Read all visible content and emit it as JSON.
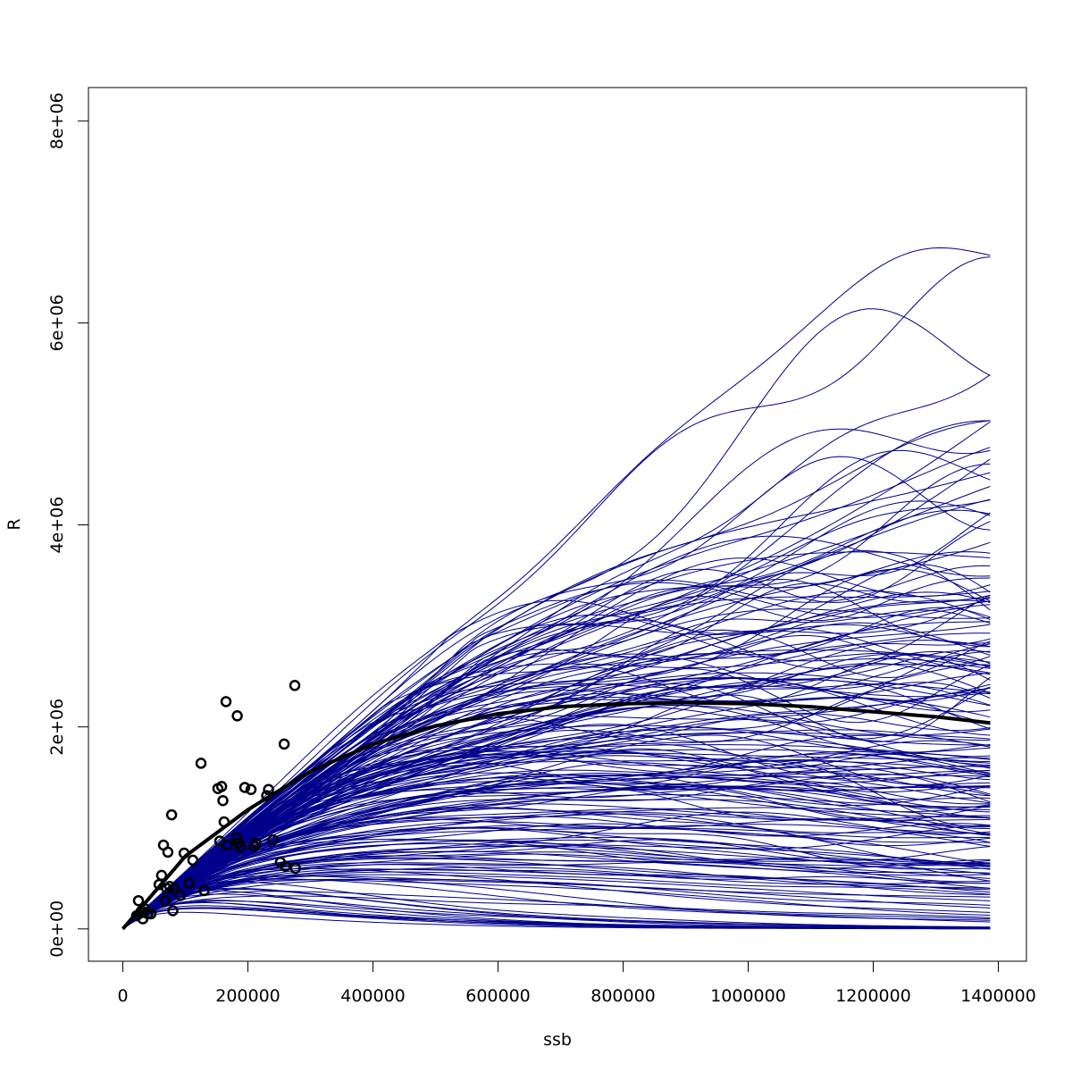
{
  "chart_data": {
    "type": "line",
    "title": "",
    "xlabel": "ssb",
    "ylabel": "R",
    "xlim": [
      -55000,
      1445000
    ],
    "ylim": [
      -320000,
      8330000
    ],
    "x_ticks": [
      0,
      200000,
      400000,
      600000,
      800000,
      1000000,
      1200000,
      1400000
    ],
    "x_tick_labels": [
      "0",
      "200000",
      "400000",
      "600000",
      "800000",
      "1000000",
      "1200000",
      "1400000"
    ],
    "y_ticks": [
      0,
      2000000,
      4000000,
      6000000,
      8000000
    ],
    "y_tick_labels": [
      "0e+00",
      "2e+06",
      "4e+06",
      "6e+06",
      "8e+06"
    ],
    "grid": false,
    "legend": "none",
    "colors": {
      "simulations": "#00008B",
      "fit": "#000000",
      "observations": "#000000"
    },
    "simulation_series_count": 200,
    "simulation_x_range": [
      0,
      1387000
    ],
    "fitted_curve": {
      "x": [
        0,
        100000,
        200000,
        300000,
        400000,
        500000,
        600000,
        700000,
        800000,
        900000,
        1000000,
        1100000,
        1200000,
        1300000,
        1387000
      ],
      "y": [
        0,
        720000,
        1180000,
        1560000,
        1830000,
        2010000,
        2130000,
        2200000,
        2230000,
        2240000,
        2230000,
        2200000,
        2150000,
        2100000,
        2040000
      ]
    },
    "observations": {
      "x": [
        22000,
        25000,
        28000,
        30000,
        32000,
        35000,
        40000,
        45000,
        58000,
        62000,
        65000,
        68000,
        70000,
        72000,
        75000,
        78000,
        80000,
        82000,
        92000,
        98000,
        106000,
        112000,
        125000,
        130000,
        152000,
        155000,
        158000,
        160000,
        162000,
        165000,
        167000,
        182000,
        183000,
        185000,
        188000,
        195000,
        205000,
        210000,
        213000,
        230000,
        233000,
        240000,
        252000,
        258000,
        260000,
        275000,
        276000
      ],
      "y": [
        130000,
        280000,
        160000,
        180000,
        100000,
        200000,
        150000,
        150000,
        440000,
        530000,
        830000,
        280000,
        400000,
        760000,
        420000,
        1130000,
        180000,
        400000,
        330000,
        750000,
        450000,
        680000,
        1640000,
        380000,
        1390000,
        870000,
        1410000,
        1270000,
        1060000,
        2250000,
        830000,
        900000,
        2110000,
        850000,
        810000,
        1400000,
        1380000,
        820000,
        850000,
        1320000,
        1380000,
        880000,
        660000,
        1830000,
        620000,
        2410000,
        600000
      ]
    }
  }
}
